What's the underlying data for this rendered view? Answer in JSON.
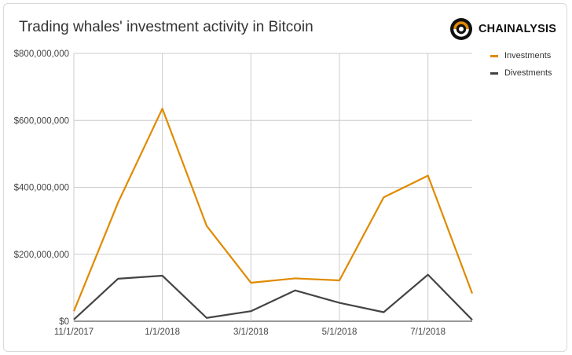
{
  "title": "Trading whales' investment activity in Bitcoin",
  "logo_text": "CHAINALYSIS",
  "colors": {
    "investments": "#E08A00",
    "divestments": "#444444",
    "grid": "#cccccc"
  },
  "chart_data": {
    "type": "line",
    "title": "Trading whales' investment activity in Bitcoin",
    "xlabel": "",
    "ylabel": "",
    "x": [
      "11/1/2017",
      "12/1/2017",
      "1/1/2018",
      "2/1/2018",
      "3/1/2018",
      "4/1/2018",
      "5/1/2018",
      "6/1/2018",
      "7/1/2018",
      "8/1/2018"
    ],
    "x_tick_labels": [
      "11/1/2017",
      "1/1/2018",
      "3/1/2018",
      "5/1/2018",
      "7/1/2018"
    ],
    "y_tick_labels": [
      "$0",
      "$200,000,000",
      "$400,000,000",
      "$600,000,000",
      "$800,000,000"
    ],
    "ylim": [
      0,
      800000000
    ],
    "grid": true,
    "legend_position": "top-right",
    "series": [
      {
        "name": "Investments",
        "values": [
          30000000,
          355000000,
          635000000,
          285000000,
          115000000,
          128000000,
          122000000,
          370000000,
          435000000,
          83000000
        ]
      },
      {
        "name": "Divestments",
        "values": [
          5000000,
          127000000,
          136000000,
          10000000,
          30000000,
          92000000,
          55000000,
          27000000,
          139000000,
          4000000
        ]
      }
    ]
  }
}
